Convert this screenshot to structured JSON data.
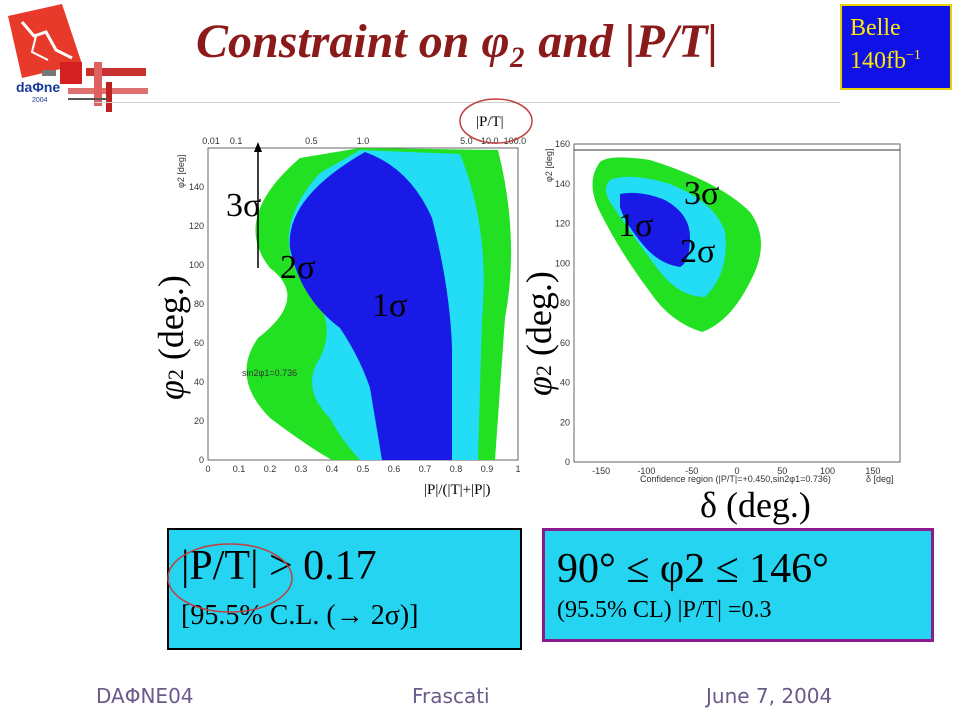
{
  "header": {
    "title": "Constraint on φ₂ and |P/T|",
    "badge_line1": "Belle",
    "badge_line2": "140fb",
    "badge_sup": "−1"
  },
  "logo": {
    "text": "daΦne",
    "sub": "2004"
  },
  "chart_data": [
    {
      "type": "contour",
      "title": "",
      "xlabel": "|P|/(|T|+|P|)",
      "ylabel": "φ2 (deg.)",
      "top_axis_label": "|P/T|",
      "xlim": [
        0,
        1
      ],
      "ylim": [
        0,
        160
      ],
      "x_ticks": [
        "0",
        "0.1",
        "0.2",
        "0.3",
        "0.4",
        "0.5",
        "0.6",
        "0.7",
        "0.8",
        "0.9",
        "1"
      ],
      "y_ticks": [
        "0",
        "20",
        "40",
        "60",
        "80",
        "100",
        "120",
        "140"
      ],
      "top_ticks": [
        "0.01",
        "0.1",
        "0.5",
        "1.0",
        "5.0",
        "10.0",
        "100.0"
      ],
      "inner_ylabel": "φ2 [deg]",
      "annotation": "sin2φ1=0.736",
      "regions": [
        "1σ",
        "2σ",
        "3σ"
      ],
      "region_colors": {
        "1σ": "#1a1ae6",
        "2σ": "#22ddf5",
        "3σ": "#22e022"
      }
    },
    {
      "type": "contour",
      "title": "",
      "xlabel": "δ (deg.)",
      "ylabel": "φ2 (deg.)",
      "xlim": [
        -180,
        180
      ],
      "ylim": [
        0,
        160
      ],
      "x_ticks": [
        "-150",
        "-100",
        "-50",
        "0",
        "50",
        "100",
        "150"
      ],
      "y_ticks": [
        "0",
        "20",
        "40",
        "60",
        "80",
        "100",
        "120",
        "140",
        "160"
      ],
      "inner_ylabel": "φ2 [deg]",
      "inner_xlabel": "Confidence region (|P/T|=+0.450,sin2φ1=0.736)",
      "inner_xunit": "δ [deg]",
      "regions": [
        "1σ",
        "2σ",
        "3σ"
      ],
      "region_colors": {
        "1σ": "#1a1ae6",
        "2σ": "#22ddf5",
        "3σ": "#22e022"
      }
    }
  ],
  "left_plot": {
    "y_axis": "φ2 (deg.)",
    "sigma1": "1σ",
    "sigma2": "2σ",
    "sigma3": "3σ"
  },
  "right_plot": {
    "y_axis": "φ2 (deg.)",
    "x_axis": "δ (deg.)",
    "sigma1": "1σ",
    "sigma2": "2σ",
    "sigma3": "3σ"
  },
  "result_left": {
    "line1": "|P/T| > 0.17",
    "line2": "[95.5% C.L. (→ 2σ)]"
  },
  "result_right": {
    "line1": "90°  ≤  φ2  ≤  146°",
    "line2": "(95.5% CL)    |P/T| =0.3"
  },
  "footer": {
    "left": "DAΦNE04",
    "center": "Frascati",
    "right": "June 7, 2004"
  }
}
